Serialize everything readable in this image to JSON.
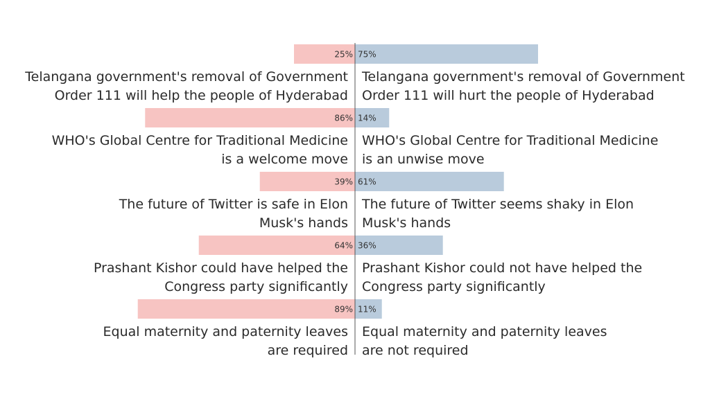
{
  "chart_data": {
    "type": "bar",
    "orientation": "diverging-horizontal",
    "xlim": [
      -100,
      100
    ],
    "colors": {
      "left": "#f7c4c2",
      "right": "#b9cbdc"
    },
    "rows": [
      {
        "left_value": 25,
        "right_value": 75,
        "left_label": "25%",
        "right_label": "75%",
        "left_text": [
          "Telangana government's removal of Government",
          "Order 111 will help the people of Hyderabad"
        ],
        "right_text": [
          "Telangana government's removal of Government",
          "Order 111 will hurt the people of Hyderabad"
        ]
      },
      {
        "left_value": 86,
        "right_value": 14,
        "left_label": "86%",
        "right_label": "14%",
        "left_text": [
          "WHO's Global Centre for Traditional Medicine",
          "is a welcome move"
        ],
        "right_text": [
          "WHO's Global Centre for Traditional Medicine",
          "is an unwise move"
        ]
      },
      {
        "left_value": 39,
        "right_value": 61,
        "left_label": "39%",
        "right_label": "61%",
        "left_text": [
          "The future of Twitter is safe in Elon",
          "Musk's hands"
        ],
        "right_text": [
          "The future of Twitter seems shaky in Elon",
          "Musk's hands"
        ]
      },
      {
        "left_value": 64,
        "right_value": 36,
        "left_label": "64%",
        "right_label": "36%",
        "left_text": [
          "Prashant Kishor could have helped the",
          "Congress party significantly"
        ],
        "right_text": [
          "Prashant Kishor could not have helped the",
          "Congress party significantly"
        ]
      },
      {
        "left_value": 89,
        "right_value": 11,
        "left_label": "89%",
        "right_label": "11%",
        "left_text": [
          "Equal maternity and paternity leaves",
          "are required"
        ],
        "right_text": [
          "Equal maternity and paternity leaves",
          "are not required"
        ]
      }
    ]
  }
}
